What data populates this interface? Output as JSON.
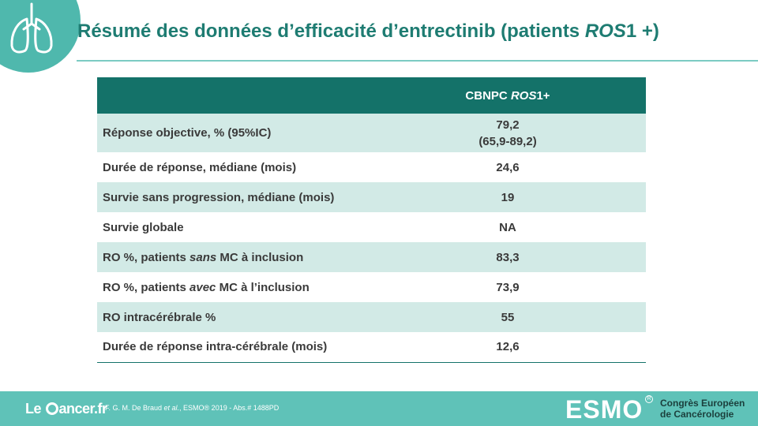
{
  "slide": {
    "title": {
      "before": "Résumé des données d’efficacité d’entrectinib (patients ",
      "italic": "ROS",
      "after": "1 +)"
    }
  },
  "table": {
    "header": {
      "col1": "",
      "col2_before": "CBNPC ",
      "col2_italic": "ROS",
      "col2_after": "1+"
    },
    "rows": [
      {
        "label_before": "Réponse objective, % (95%IC)",
        "label_italic": "",
        "label_after": "",
        "value_line1": "79,2",
        "value_line2": "(65,9-89,2)"
      },
      {
        "label_before": "Durée de réponse, médiane (mois)",
        "label_italic": "",
        "label_after": "",
        "value_line1": "24,6",
        "value_line2": ""
      },
      {
        "label_before": "Survie sans progression, médiane (mois)",
        "label_italic": "",
        "label_after": "",
        "value_line1": "19",
        "value_line2": ""
      },
      {
        "label_before": "Survie globale",
        "label_italic": "",
        "label_after": "",
        "value_line1": "NA",
        "value_line2": ""
      },
      {
        "label_before": "RO %, patients ",
        "label_italic": "sans",
        "label_after": " MC à inclusion",
        "value_line1": "83,3",
        "value_line2": ""
      },
      {
        "label_before": "RO %, patients ",
        "label_italic": "avec",
        "label_after": " MC à l’inclusion",
        "value_line1": "73,9",
        "value_line2": ""
      },
      {
        "label_before": "RO intracérébrale %",
        "label_italic": "",
        "label_after": "",
        "value_line1": "55",
        "value_line2": ""
      },
      {
        "label_before": "Durée de réponse intra-cérébrale (mois)",
        "label_italic": "",
        "label_after": "",
        "value_line1": "12,6",
        "value_line2": ""
      }
    ]
  },
  "footer": {
    "brand_le": "Le ",
    "brand_rest": "ancer.fr",
    "reference_before": "F. G. M. De Braud ",
    "reference_italic": "et al.",
    "reference_after": ", ESMO® 2019 - Abs.# 1488PD",
    "esmo_label": "ESMO",
    "registered_mark": "R",
    "congress_line1": "Congrès Européen",
    "congress_line2": "de Cancérologie"
  },
  "icons": {
    "corner": "lungs-icon",
    "brand": "pie-chart-icon"
  },
  "colors": {
    "title": "#1e7c72",
    "header_bg": "#147269",
    "stripe": "#d2eae6",
    "footer_bg": "#5fc2b8",
    "corner": "#4fb8ad"
  }
}
